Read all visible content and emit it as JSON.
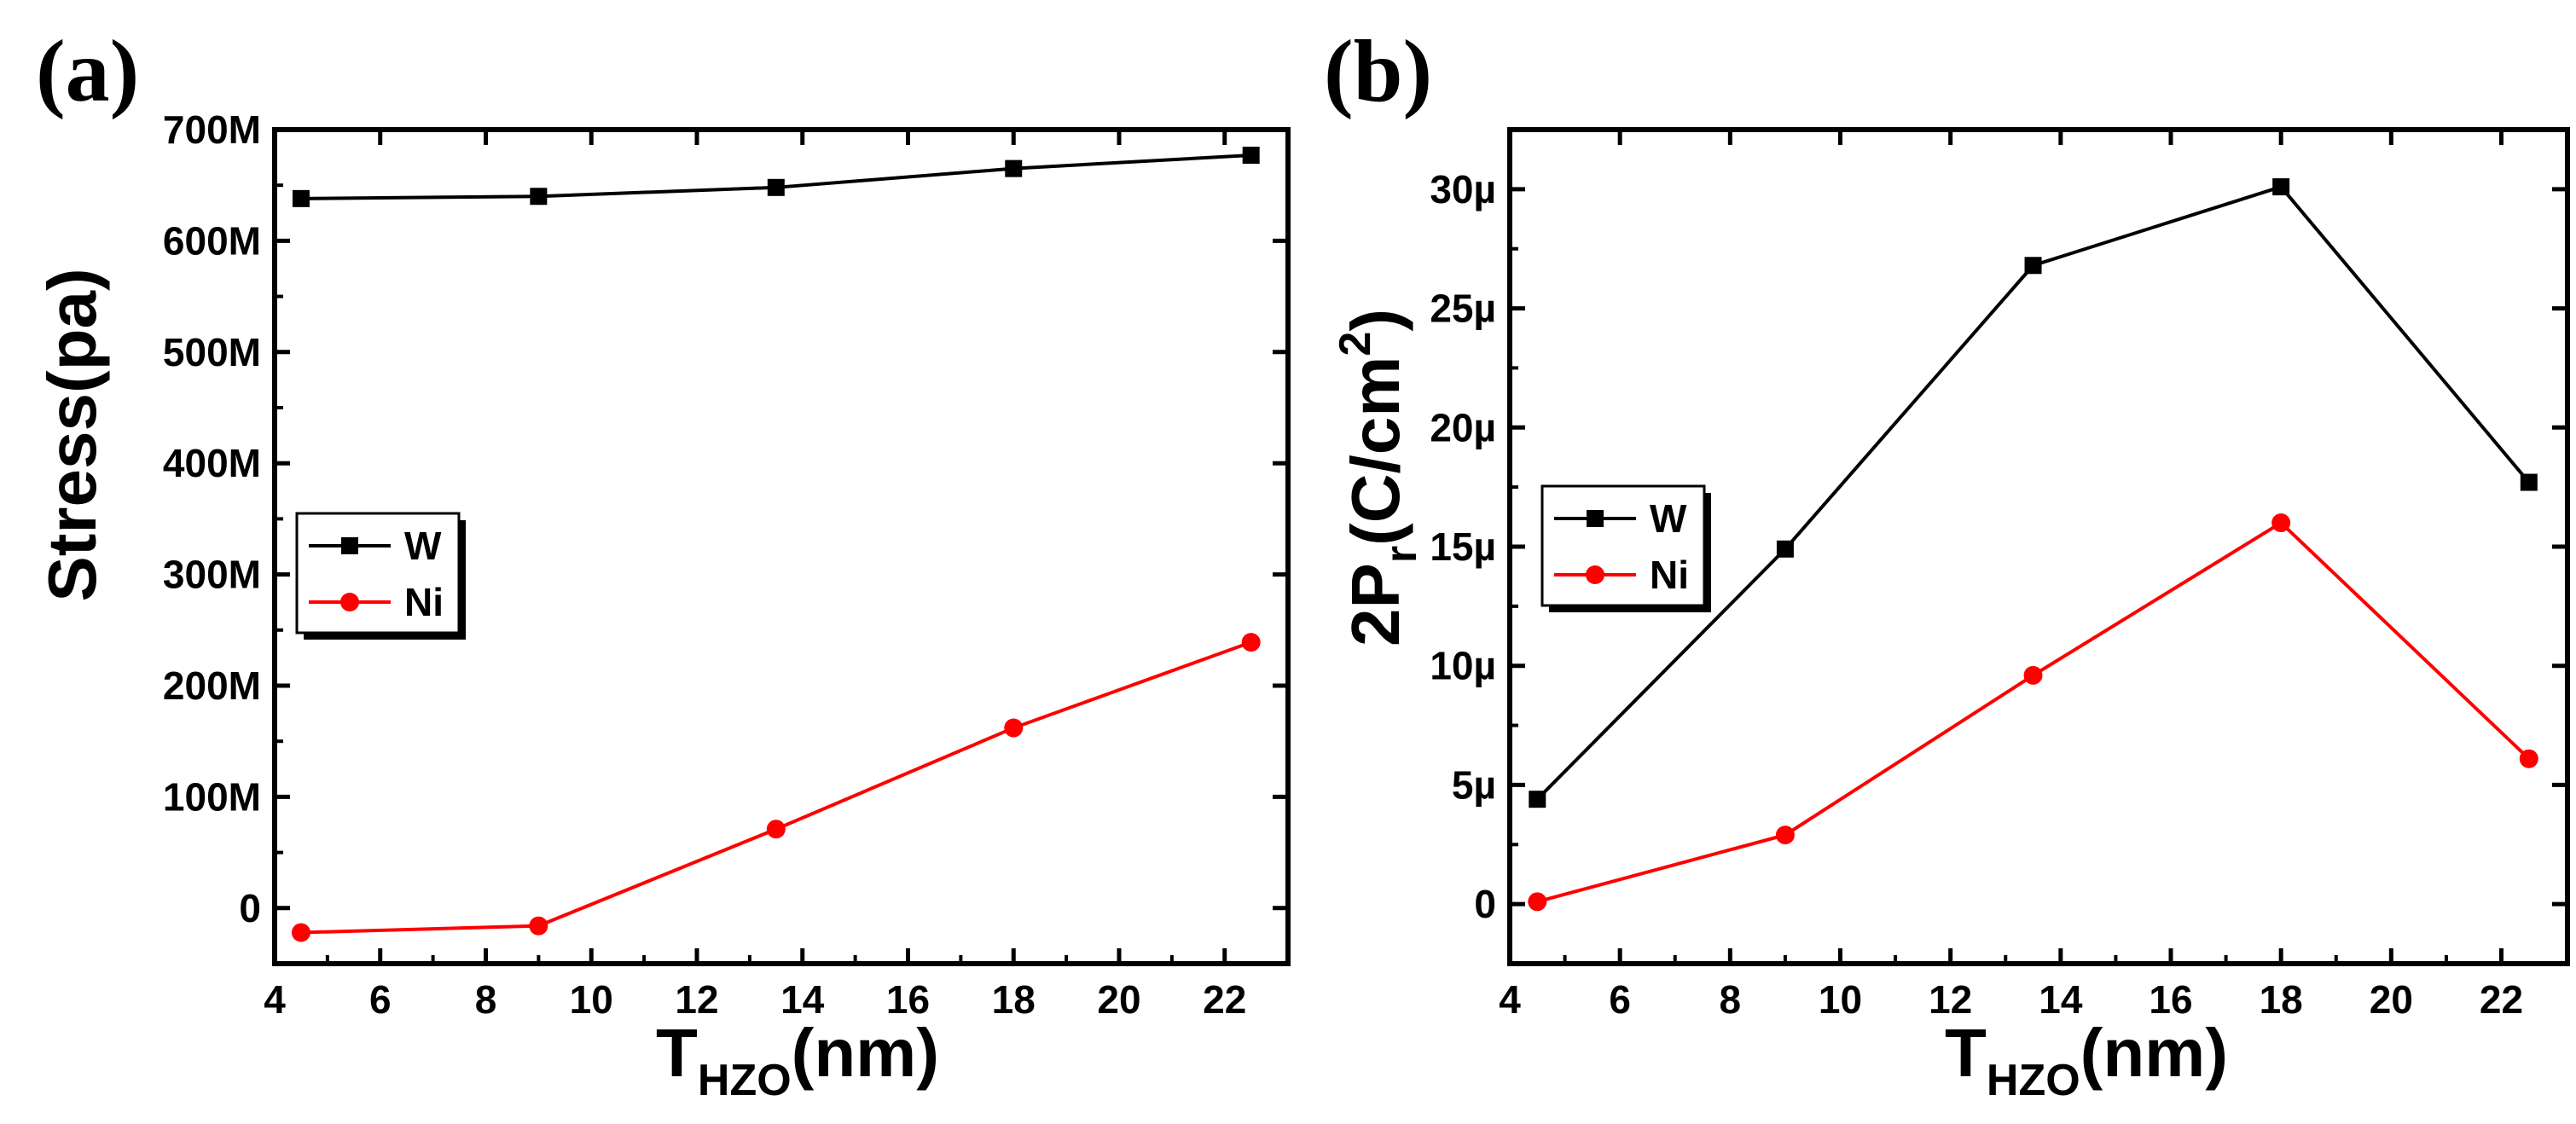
{
  "chart_data": [
    {
      "panel_label": "(a)",
      "type": "line",
      "xlabel": {
        "main": "T",
        "sub": "HZO",
        "unit": "(nm)"
      },
      "ylabel": "Stress(pa)",
      "xlim": [
        4,
        23.2
      ],
      "ylim": [
        -50,
        700
      ],
      "xticks": [
        4,
        6,
        8,
        10,
        12,
        14,
        16,
        18,
        20,
        22
      ],
      "yticks": [
        {
          "value": 0,
          "label": "0"
        },
        {
          "value": 100,
          "label": "100M"
        },
        {
          "value": 200,
          "label": "200M"
        },
        {
          "value": 300,
          "label": "300M"
        },
        {
          "value": 400,
          "label": "400M"
        },
        {
          "value": 500,
          "label": "500M"
        },
        {
          "value": 600,
          "label": "600M"
        },
        {
          "value": 700,
          "label": "700M"
        }
      ],
      "legend_position": "middle-left",
      "series": [
        {
          "name": "W",
          "color": "#000000",
          "marker": "square",
          "x": [
            4.5,
            9,
            13.5,
            18,
            22.5
          ],
          "y": [
            638,
            640,
            648,
            665,
            677
          ]
        },
        {
          "name": "Ni",
          "color": "#ff0000",
          "marker": "circle",
          "x": [
            4.5,
            9,
            13.5,
            18,
            22.5
          ],
          "y": [
            -22,
            -16,
            71,
            162,
            239
          ]
        }
      ]
    },
    {
      "panel_label": "(b)",
      "type": "line",
      "xlabel": {
        "main": "T",
        "sub": "HZO",
        "unit": "(nm)"
      },
      "ylabel": {
        "main": "2P",
        "sub": "r",
        "unit": "(C/cm",
        "sup": "2",
        "close": ")"
      },
      "xlim": [
        4,
        23.2
      ],
      "ylim": [
        -2.5,
        32.5
      ],
      "xticks": [
        4,
        6,
        8,
        10,
        12,
        14,
        16,
        18,
        20,
        22
      ],
      "yticks": [
        {
          "value": 0,
          "label": "0"
        },
        {
          "value": 5,
          "label": "5µ"
        },
        {
          "value": 10,
          "label": "10µ"
        },
        {
          "value": 15,
          "label": "15µ"
        },
        {
          "value": 20,
          "label": "20µ"
        },
        {
          "value": 25,
          "label": "25µ"
        },
        {
          "value": 30,
          "label": "30µ"
        }
      ],
      "legend_position": "middle-left",
      "series": [
        {
          "name": "W",
          "color": "#000000",
          "marker": "square",
          "x": [
            4.5,
            9,
            13.5,
            18,
            22.5
          ],
          "y": [
            4.4,
            14.9,
            26.8,
            30.1,
            17.7
          ]
        },
        {
          "name": "Ni",
          "color": "#ff0000",
          "marker": "circle",
          "x": [
            4.5,
            9,
            13.5,
            18,
            22.5
          ],
          "y": [
            0.1,
            2.9,
            9.6,
            16.0,
            6.1
          ]
        }
      ]
    }
  ]
}
